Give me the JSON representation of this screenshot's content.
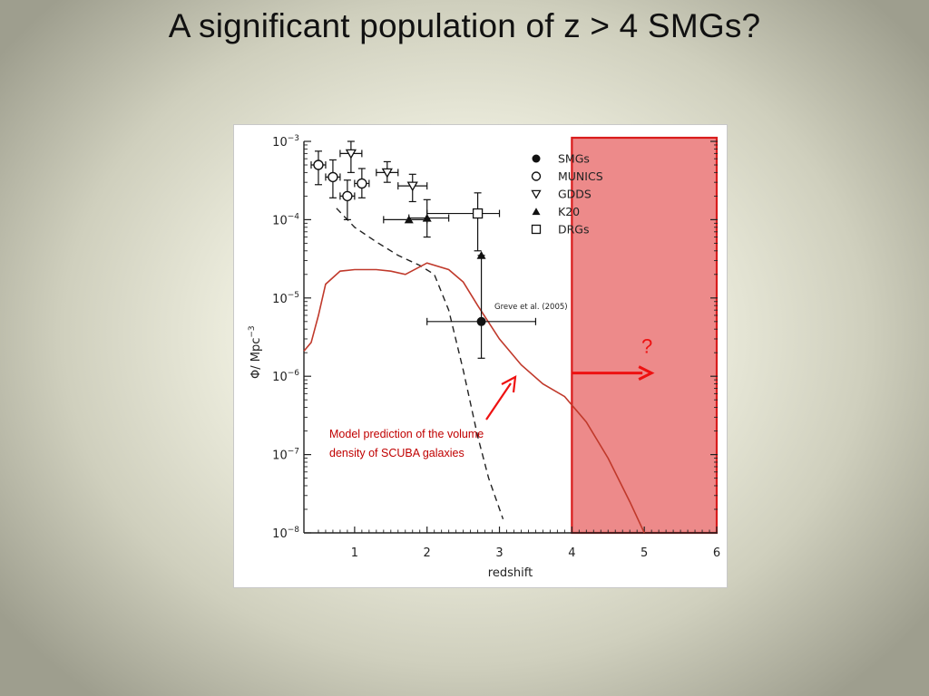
{
  "slide": {
    "title": "A significant population of z > 4 SMGs?"
  },
  "annotations": {
    "question_mark": "?",
    "caption_line1": "Model prediction of the volume",
    "caption_line2": "density of SCUBA galaxies",
    "citation": "Greve et al. (2005)"
  },
  "colors": {
    "model_curve": "#c0392b",
    "highlight_fill": "#e97070",
    "highlight_edge": "#d91c1c",
    "arrow": "#ee1111",
    "caption": "#c00000"
  },
  "chart_data": {
    "type": "scatter",
    "xlabel": "redshift",
    "ylabel": "Φ/ Mpc^-3",
    "xlim": [
      0.3,
      6
    ],
    "ylim": [
      1e-08,
      0.001
    ],
    "yscale": "log",
    "x_ticks": [
      "1",
      "2",
      "3",
      "4",
      "5",
      "6"
    ],
    "y_ticks": [
      "10^-3",
      "10^-4",
      "10^-5",
      "10^-6",
      "10^-7",
      "10^-8"
    ],
    "legend_placement": "top-right",
    "legend": [
      {
        "label": "SMGs",
        "marker": "filled-circle"
      },
      {
        "label": "MUNICS",
        "marker": "open-circle"
      },
      {
        "label": "GDDS",
        "marker": "open-triangle-down"
      },
      {
        "label": "K20",
        "marker": "filled-triangle-up"
      },
      {
        "label": "DRGs",
        "marker": "open-square"
      }
    ],
    "series": [
      {
        "name": "SMGs",
        "marker": "filled-circle",
        "points": [
          {
            "x": 2.75,
            "y": 5e-06,
            "xerr": [
              2.0,
              3.5
            ],
            "yerr": [
              1.7e-06,
              3.5e-05
            ]
          }
        ]
      },
      {
        "name": "MUNICS",
        "marker": "open-circle",
        "points": [
          {
            "x": 0.5,
            "y": 0.0005,
            "xerr": [
              0.4,
              0.6
            ],
            "yerr": [
              0.00028,
              0.00075
            ]
          },
          {
            "x": 0.7,
            "y": 0.00035,
            "xerr": [
              0.6,
              0.8
            ],
            "yerr": [
              0.00019,
              0.00058
            ]
          },
          {
            "x": 0.9,
            "y": 0.0002,
            "xerr": [
              0.8,
              1.0
            ],
            "yerr": [
              0.0001,
              0.00032
            ]
          },
          {
            "x": 1.1,
            "y": 0.00029,
            "xerr": [
              1.0,
              1.2
            ],
            "yerr": [
              0.00019,
              0.00045
            ]
          }
        ]
      },
      {
        "name": "GDDS",
        "marker": "open-triangle-down",
        "points": [
          {
            "x": 0.95,
            "y": 0.0007,
            "xerr": [
              0.8,
              1.1
            ],
            "yerr": [
              0.0004,
              0.001
            ]
          },
          {
            "x": 1.45,
            "y": 0.0004,
            "xerr": [
              1.3,
              1.6
            ],
            "yerr": [
              0.0003,
              0.00055
            ]
          },
          {
            "x": 1.8,
            "y": 0.00027,
            "xerr": [
              1.6,
              2.0
            ],
            "yerr": [
              0.00017,
              0.00038
            ]
          }
        ]
      },
      {
        "name": "K20",
        "marker": "filled-triangle-up",
        "points": [
          {
            "x": 1.75,
            "y": 0.0001,
            "xerr": [
              1.4,
              2.0
            ],
            "yerr": [
              0.0001,
              0.0001
            ]
          },
          {
            "x": 2.0,
            "y": 0.000105,
            "xerr": [
              1.75,
              2.3
            ],
            "yerr": [
              6e-05,
              0.00018
            ]
          }
        ]
      },
      {
        "name": "DRGs",
        "marker": "open-square",
        "points": [
          {
            "x": 2.7,
            "y": 0.00012,
            "xerr": [
              2.0,
              3.0
            ],
            "yerr": [
              4e-05,
              0.00022
            ]
          },
          {
            "x": 2.75,
            "y": 3.5e-05,
            "xerr": [
              2.75,
              2.75
            ],
            "yerr": [
              3.5e-05,
              3.5e-05
            ],
            "marker": "filled-triangle-up"
          }
        ]
      },
      {
        "name": "",
        "style": "dashed",
        "color": "#222222",
        "x": [
          0.75,
          1.0,
          1.3,
          1.6,
          1.9,
          2.1,
          2.3,
          2.5,
          2.7,
          2.85,
          3.05
        ],
        "y": [
          0.00014,
          8e-05,
          5.2e-05,
          3.5e-05,
          2.6e-05,
          2e-05,
          7e-06,
          1.2e-06,
          1.7e-07,
          5e-08,
          1.5e-08
        ]
      },
      {
        "name": "",
        "style": "solid",
        "color": "#c0392b",
        "x": [
          0.3,
          0.4,
          0.5,
          0.6,
          0.8,
          1.0,
          1.3,
          1.5,
          1.7,
          2.0,
          2.3,
          2.5,
          2.7,
          3.0,
          3.3,
          3.6,
          3.9,
          4.2,
          4.5,
          4.8,
          5.0
        ],
        "y": [
          2.1e-06,
          2.7e-06,
          6e-06,
          1.5e-05,
          2.2e-05,
          2.3e-05,
          2.3e-05,
          2.2e-05,
          2e-05,
          2.8e-05,
          2.3e-05,
          1.6e-05,
          8e-06,
          3e-06,
          1.4e-06,
          8e-07,
          5.5e-07,
          2.6e-07,
          9e-08,
          2.5e-08,
          1e-08
        ]
      }
    ],
    "highlight_region": {
      "x": [
        4,
        6
      ]
    },
    "arrow_range": {
      "x": [
        4.0,
        5.1
      ],
      "y": 1.1e-06
    }
  }
}
